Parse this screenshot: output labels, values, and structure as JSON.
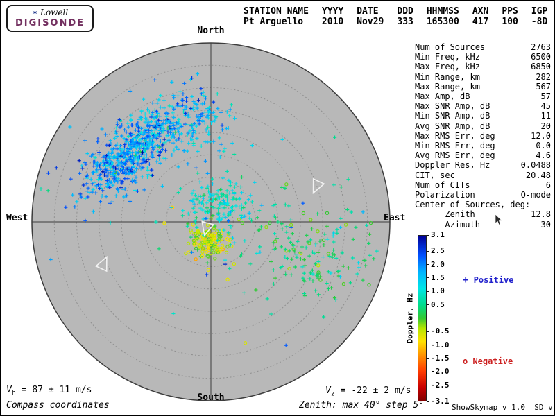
{
  "logo": {
    "brand_top": "Lowell",
    "brand_bottom": "DIGISONDE",
    "star_icon": "✶"
  },
  "colors": {
    "digisonde_purple": "#722f5f",
    "positive_blue": "#2121cc",
    "negative_red": "#cc2121",
    "plot_bg": "#b8b8b8",
    "grid": "#8f8f8f",
    "axis": "#3c3c3c"
  },
  "header": {
    "columns": [
      {
        "label": "STATION NAME",
        "value": "Pt Arguello"
      },
      {
        "label": "YYYY",
        "value": "2010"
      },
      {
        "label": "DATE",
        "value": "Nov29"
      },
      {
        "label": "DDD",
        "value": "333"
      },
      {
        "label": "HHMMSS",
        "value": "165300"
      },
      {
        "label": "AXN",
        "value": "417"
      },
      {
        "label": "PPS",
        "value": "100"
      },
      {
        "label": "IGP",
        "value": "-8D"
      }
    ]
  },
  "stats": {
    "rows": [
      {
        "label": "Num of Sources",
        "value": "2763"
      },
      {
        "label": "Min Freq, kHz",
        "value": "6500"
      },
      {
        "label": "Max Freq, kHz",
        "value": "6850"
      },
      {
        "label": "Min Range, km",
        "value": "282"
      },
      {
        "label": "Max Range, km",
        "value": "567"
      },
      {
        "label": "Max Amp, dB",
        "value": "57"
      },
      {
        "label": "Max SNR Amp, dB",
        "value": "45"
      },
      {
        "label": "Min SNR Amp, dB",
        "value": "11"
      },
      {
        "label": "Avg SNR Amp, dB",
        "value": "20"
      },
      {
        "label": "Max RMS Err, deg",
        "value": "12.0"
      },
      {
        "label": "Min RMS Err, deg",
        "value": "0.0"
      },
      {
        "label": "Avg RMS Err, deg",
        "value": "4.6"
      },
      {
        "label": "Doppler Res, Hz",
        "value": "0.0488"
      },
      {
        "label": "CIT, sec",
        "value": "20.48"
      },
      {
        "label": "Num of CITs",
        "value": "6"
      },
      {
        "label": "Polarization",
        "value": "O-mode"
      },
      {
        "label": "Center of Sources, deg:",
        "value": ""
      },
      {
        "label": "      Zenith",
        "value": "12.8"
      },
      {
        "label": "      Azimuth",
        "value": "30"
      }
    ]
  },
  "colorbar": {
    "title": "Doppler, Hz",
    "min": -3.1,
    "max": 3.1,
    "ticks": [
      "3.1",
      "2.5",
      "2.0",
      "1.5",
      "1.0",
      "0.5",
      "-0.5",
      "-1.0",
      "-1.5",
      "-2.0",
      "-2.5",
      "-3.1"
    ],
    "tick_values": [
      3.1,
      2.5,
      2.0,
      1.5,
      1.0,
      0.5,
      -0.5,
      -1.0,
      -1.5,
      -2.0,
      -2.5,
      -3.1
    ],
    "stops": [
      {
        "t": 0.0,
        "c": "#800000"
      },
      {
        "t": 0.08,
        "c": "#c80000"
      },
      {
        "t": 0.18,
        "c": "#ff3c00"
      },
      {
        "t": 0.28,
        "c": "#ff9600"
      },
      {
        "t": 0.36,
        "c": "#ffe100"
      },
      {
        "t": 0.44,
        "c": "#b4e600"
      },
      {
        "t": 0.5,
        "c": "#32c832"
      },
      {
        "t": 0.58,
        "c": "#00dc8c"
      },
      {
        "t": 0.68,
        "c": "#00e6e6"
      },
      {
        "t": 0.78,
        "c": "#00b4ff"
      },
      {
        "t": 0.88,
        "c": "#0050ff"
      },
      {
        "t": 1.0,
        "c": "#000096"
      }
    ]
  },
  "legend": {
    "positive": {
      "symbol": "+",
      "label": " Positive"
    },
    "negative": {
      "symbol": "o",
      "label": " Negative"
    }
  },
  "footer": {
    "vh": {
      "sym": "V",
      "sub": "h",
      "rest": " = 87 ± 11 m/s"
    },
    "vz": {
      "sym": "V",
      "sub": "z",
      "rest": " = -22 ± 2 m/s"
    },
    "coords_note": "Compass coordinates",
    "zenith_note": "Zenith: max 40°  step 5°",
    "version": "ShowSkymap v 1.0  SD v 5.0"
  },
  "chart_data": {
    "type": "scatter",
    "projection": "polar_skymap",
    "title": "Digisonde Doppler skymap, Pt Arguello 2010 Nov29 333 165300",
    "compass": {
      "north": "North",
      "south": "South",
      "east": "East",
      "west": "West"
    },
    "zenith_max_deg": 40,
    "zenith_step_deg": 5,
    "doppler_range_hz": [
      -3.1,
      3.1
    ],
    "num_sources": 2763,
    "marker_positive_doppler": "+",
    "marker_negative_doppler": "o",
    "center_of_sources_deg": {
      "zenith": 12.8,
      "azimuth": 30
    },
    "seed": 20101129,
    "clusters": [
      {
        "name": "northwest-main",
        "cx": -0.38,
        "cy": 0.44,
        "sx": 0.2,
        "sy": 0.075,
        "rot_deg": 42,
        "n": 520,
        "doppler_mean": 1.7,
        "doppler_sd": 0.45
      },
      {
        "name": "northwest-outer",
        "cx": -0.52,
        "cy": 0.33,
        "sx": 0.13,
        "sy": 0.09,
        "rot_deg": 40,
        "n": 180,
        "doppler_mean": 2.1,
        "doppler_sd": 0.4
      },
      {
        "name": "north-top",
        "cx": -0.05,
        "cy": 0.52,
        "sx": 0.1,
        "sy": 0.09,
        "rot_deg": 0,
        "n": 90,
        "doppler_mean": 1.5,
        "doppler_sd": 0.4
      },
      {
        "name": "center",
        "cx": 0.05,
        "cy": 0.1,
        "sx": 0.09,
        "sy": 0.07,
        "rot_deg": 0,
        "n": 140,
        "doppler_mean": 0.9,
        "doppler_sd": 0.35
      },
      {
        "name": "south-center",
        "cx": -0.01,
        "cy": -0.11,
        "sx": 0.055,
        "sy": 0.045,
        "rot_deg": 0,
        "n": 150,
        "doppler_mean": -0.45,
        "doppler_sd": 0.35
      },
      {
        "name": "east-band",
        "cx": 0.5,
        "cy": -0.1,
        "sx": 0.22,
        "sy": 0.13,
        "rot_deg": -15,
        "n": 130,
        "doppler_mean": 0.45,
        "doppler_sd": 0.35
      },
      {
        "name": "southeast-sparse",
        "cx": 0.62,
        "cy": -0.3,
        "sx": 0.1,
        "sy": 0.08,
        "rot_deg": 0,
        "n": 45,
        "doppler_mean": 0.3,
        "doppler_sd": 0.3
      },
      {
        "name": "wide-sparse",
        "cx": 0.05,
        "cy": 0.05,
        "sx": 0.45,
        "sy": 0.35,
        "rot_deg": 0,
        "n": 70,
        "doppler_mean": 0.8,
        "doppler_sd": 0.8
      }
    ],
    "arrow_markers": [
      {
        "x": 0.59,
        "y": 0.2,
        "rot_deg": 205
      },
      {
        "x": -0.6,
        "y": -0.235,
        "rot_deg": 25
      },
      {
        "x": -0.025,
        "y": -0.035,
        "rot_deg": 195
      }
    ]
  }
}
